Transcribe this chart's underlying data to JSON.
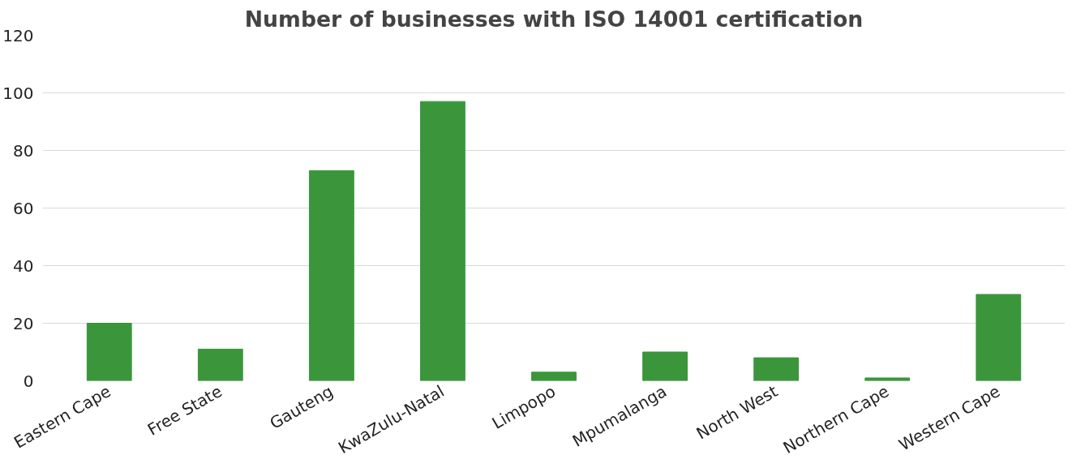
{
  "chart_data": {
    "type": "bar",
    "title": "Number of businesses with ISO 14001 certification",
    "categories": [
      "Eastern Cape",
      "Free State",
      "Gauteng",
      "KwaZulu-Natal",
      "Limpopo",
      "Mpumalanga",
      "North West",
      "Northern Cape",
      "Western Cape"
    ],
    "values": [
      20,
      11,
      73,
      97,
      3,
      10,
      8,
      1,
      30
    ],
    "color": "#3b963b",
    "ylim": [
      0,
      120
    ],
    "yticks": [
      0,
      20,
      40,
      60,
      80,
      100,
      120
    ],
    "grid": "y"
  }
}
